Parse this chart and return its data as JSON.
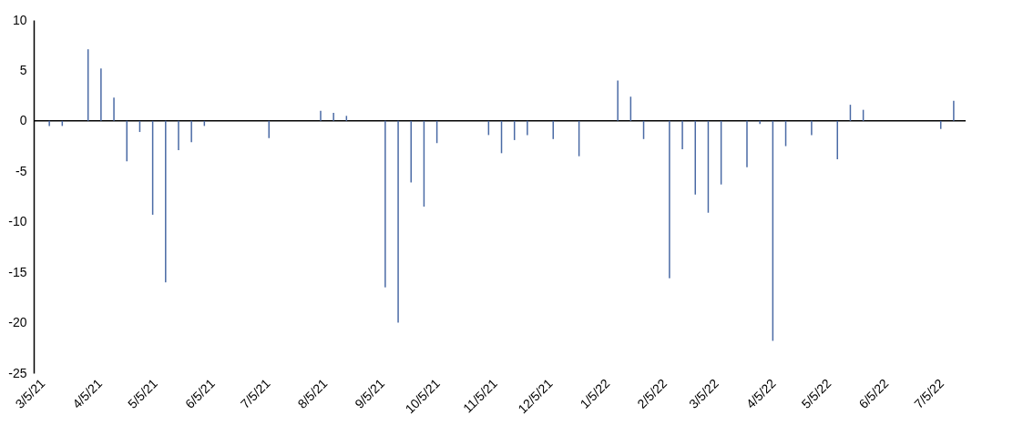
{
  "chart_data": {
    "type": "bar",
    "x": [
      "2021-03-11",
      "2021-03-18",
      "2021-04-01",
      "2021-04-08",
      "2021-04-15",
      "2021-04-22",
      "2021-04-29",
      "2021-05-06",
      "2021-05-13",
      "2021-05-20",
      "2021-05-27",
      "2021-06-03",
      "2021-07-08",
      "2021-08-05",
      "2021-08-12",
      "2021-08-19",
      "2021-09-09",
      "2021-09-16",
      "2021-09-23",
      "2021-09-30",
      "2021-10-07",
      "2021-11-04",
      "2021-11-11",
      "2021-11-18",
      "2021-11-25",
      "2021-12-09",
      "2021-12-23",
      "2022-01-13",
      "2022-01-20",
      "2022-01-27",
      "2022-02-10",
      "2022-02-17",
      "2022-02-24",
      "2022-03-03",
      "2022-03-10",
      "2022-03-24",
      "2022-03-31",
      "2022-04-07",
      "2022-04-14",
      "2022-04-28",
      "2022-05-12",
      "2022-05-19",
      "2022-05-26",
      "2022-07-07",
      "2022-07-14"
    ],
    "values": [
      -0.5,
      -0.5,
      7.1,
      5.2,
      2.3,
      -4.0,
      -1.1,
      -9.3,
      -16.0,
      -2.9,
      -2.1,
      -0.5,
      -1.7,
      1.0,
      0.8,
      0.5,
      -16.5,
      -20.0,
      -6.1,
      -8.5,
      -2.2,
      -1.4,
      -3.2,
      -1.9,
      -1.4,
      -1.8,
      -3.5,
      4.0,
      2.4,
      -1.8,
      -15.6,
      -2.8,
      -7.3,
      -9.1,
      -6.3,
      -4.6,
      -0.3,
      -21.8,
      -2.5,
      -1.4,
      -3.8,
      1.6,
      1.1,
      -0.8,
      2.0
    ],
    "color": "#4a6aa5",
    "xlim": [
      "2021-03-05",
      "2022-07-18"
    ],
    "xticks": [
      {
        "value": "2021-03-05",
        "label": "3/5/21"
      },
      {
        "value": "2021-04-05",
        "label": "4/5/21"
      },
      {
        "value": "2021-05-05",
        "label": "5/5/21"
      },
      {
        "value": "2021-06-05",
        "label": "6/5/21"
      },
      {
        "value": "2021-07-05",
        "label": "7/5/21"
      },
      {
        "value": "2021-08-05",
        "label": "8/5/21"
      },
      {
        "value": "2021-09-05",
        "label": "9/5/21"
      },
      {
        "value": "2021-10-05",
        "label": "10/5/21"
      },
      {
        "value": "2021-11-05",
        "label": "11/5/21"
      },
      {
        "value": "2021-12-05",
        "label": "12/5/21"
      },
      {
        "value": "2022-01-05",
        "label": "1/5/22"
      },
      {
        "value": "2022-02-05",
        "label": "2/5/22"
      },
      {
        "value": "2022-03-05",
        "label": "3/5/22"
      },
      {
        "value": "2022-04-05",
        "label": "4/5/22"
      },
      {
        "value": "2022-05-05",
        "label": "5/5/22"
      },
      {
        "value": "2022-06-05",
        "label": "6/5/22"
      },
      {
        "value": "2022-07-05",
        "label": "7/5/22"
      }
    ],
    "ylim": [
      -25,
      10
    ],
    "yticks": [
      -25,
      -20,
      -15,
      -10,
      -5,
      0,
      5,
      10
    ]
  }
}
